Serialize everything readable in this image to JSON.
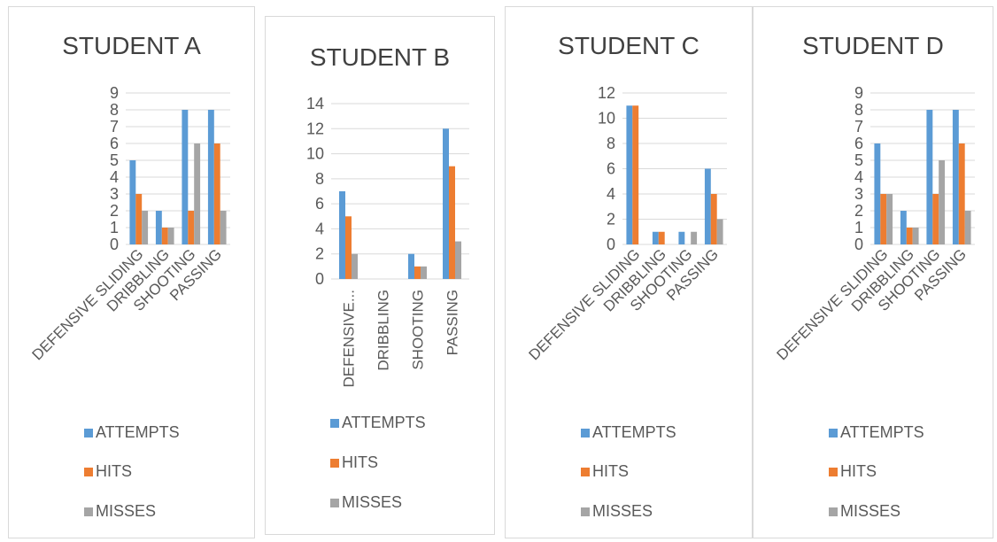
{
  "colors": {
    "attempts": "#5b9bd5",
    "hits": "#ed7d31",
    "misses": "#a5a5a5",
    "grid": "#d9d9d9",
    "axis": "#d9d9d9"
  },
  "legend": [
    "ATTEMPTS",
    "HITS",
    "MISSES"
  ],
  "chart_data": [
    {
      "type": "bar",
      "title": "STUDENT A",
      "categories": [
        "DEFENSIVE SLIDING",
        "DRIBBLING",
        "SHOOTING",
        "PASSING"
      ],
      "series": [
        {
          "name": "ATTEMPTS",
          "values": [
            5,
            2,
            8,
            8
          ]
        },
        {
          "name": "HITS",
          "values": [
            3,
            1,
            2,
            6
          ]
        },
        {
          "name": "MISSES",
          "values": [
            2,
            1,
            6,
            2
          ]
        }
      ],
      "ylim": [
        0,
        9
      ],
      "yticks": [
        "0",
        "1",
        "2",
        "3",
        "4",
        "5",
        "6",
        "7",
        "8",
        "9"
      ],
      "legend_position": "bottom"
    },
    {
      "type": "bar",
      "title": "STUDENT B",
      "categories": [
        "DEFENSIVE...",
        "DRIBBLING",
        "SHOOTING",
        "PASSING"
      ],
      "series": [
        {
          "name": "ATTEMPTS",
          "values": [
            7,
            0,
            2,
            12
          ]
        },
        {
          "name": "HITS",
          "values": [
            5,
            0,
            1,
            9
          ]
        },
        {
          "name": "MISSES",
          "values": [
            2,
            0,
            1,
            3
          ]
        }
      ],
      "ylim": [
        0,
        14
      ],
      "yticks": [
        "0",
        "2",
        "4",
        "6",
        "8",
        "10",
        "12",
        "14"
      ],
      "legend_position": "bottom"
    },
    {
      "type": "bar",
      "title": "STUDENT C",
      "categories": [
        "DEFENSIVE SLIDING",
        "DRIBBLING",
        "SHOOTING",
        "PASSING"
      ],
      "series": [
        {
          "name": "ATTEMPTS",
          "values": [
            11,
            1,
            1,
            6
          ]
        },
        {
          "name": "HITS",
          "values": [
            11,
            1,
            0,
            4
          ]
        },
        {
          "name": "MISSES",
          "values": [
            0,
            0,
            1,
            2
          ]
        }
      ],
      "ylim": [
        0,
        12
      ],
      "yticks": [
        "0",
        "2",
        "4",
        "6",
        "8",
        "10",
        "12"
      ],
      "legend_position": "bottom"
    },
    {
      "type": "bar",
      "title": "STUDENT D",
      "categories": [
        "DEFENSIVE SLIDING",
        "DRIBBLING",
        "SHOOTING",
        "PASSING"
      ],
      "series": [
        {
          "name": "ATTEMPTS",
          "values": [
            6,
            2,
            8,
            8
          ]
        },
        {
          "name": "HITS",
          "values": [
            3,
            1,
            3,
            6
          ]
        },
        {
          "name": "MISSES",
          "values": [
            3,
            1,
            5,
            2
          ]
        }
      ],
      "ylim": [
        0,
        9
      ],
      "yticks": [
        "0",
        "1",
        "2",
        "3",
        "4",
        "5",
        "6",
        "7",
        "8",
        "9"
      ],
      "legend_position": "bottom"
    }
  ]
}
